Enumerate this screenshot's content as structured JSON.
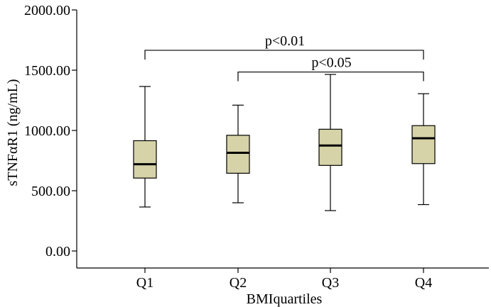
{
  "chart_data": {
    "type": "boxplot",
    "xlabel": "BMIquartiles",
    "ylabel": "sTNFαR1 (ng/mL)",
    "ylim": [
      0,
      2000
    ],
    "yticks": [
      0,
      500,
      1000,
      1500,
      2000
    ],
    "ytick_labels": [
      "0.00",
      "500.00",
      "1000.00",
      "1500.00",
      "2000.00"
    ],
    "categories": [
      "Q1",
      "Q2",
      "Q3",
      "Q4"
    ],
    "box_color": "#d6d3a8",
    "boxes": [
      {
        "category": "Q1",
        "min": 365,
        "q1": 605,
        "median": 720,
        "q3": 915,
        "max": 1365
      },
      {
        "category": "Q2",
        "min": 400,
        "q1": 645,
        "median": 815,
        "q3": 960,
        "max": 1210
      },
      {
        "category": "Q3",
        "min": 335,
        "q1": 710,
        "median": 875,
        "q3": 1010,
        "max": 1465
      },
      {
        "category": "Q4",
        "min": 385,
        "q1": 725,
        "median": 935,
        "q3": 1040,
        "max": 1305
      }
    ],
    "annotations": [
      {
        "from": "Q1",
        "to": "Q4",
        "label": "p<0.01",
        "y": 1665
      },
      {
        "from": "Q2",
        "to": "Q4",
        "label": "p<0.05",
        "y": 1485
      }
    ],
    "grid": false,
    "legend": "none"
  }
}
